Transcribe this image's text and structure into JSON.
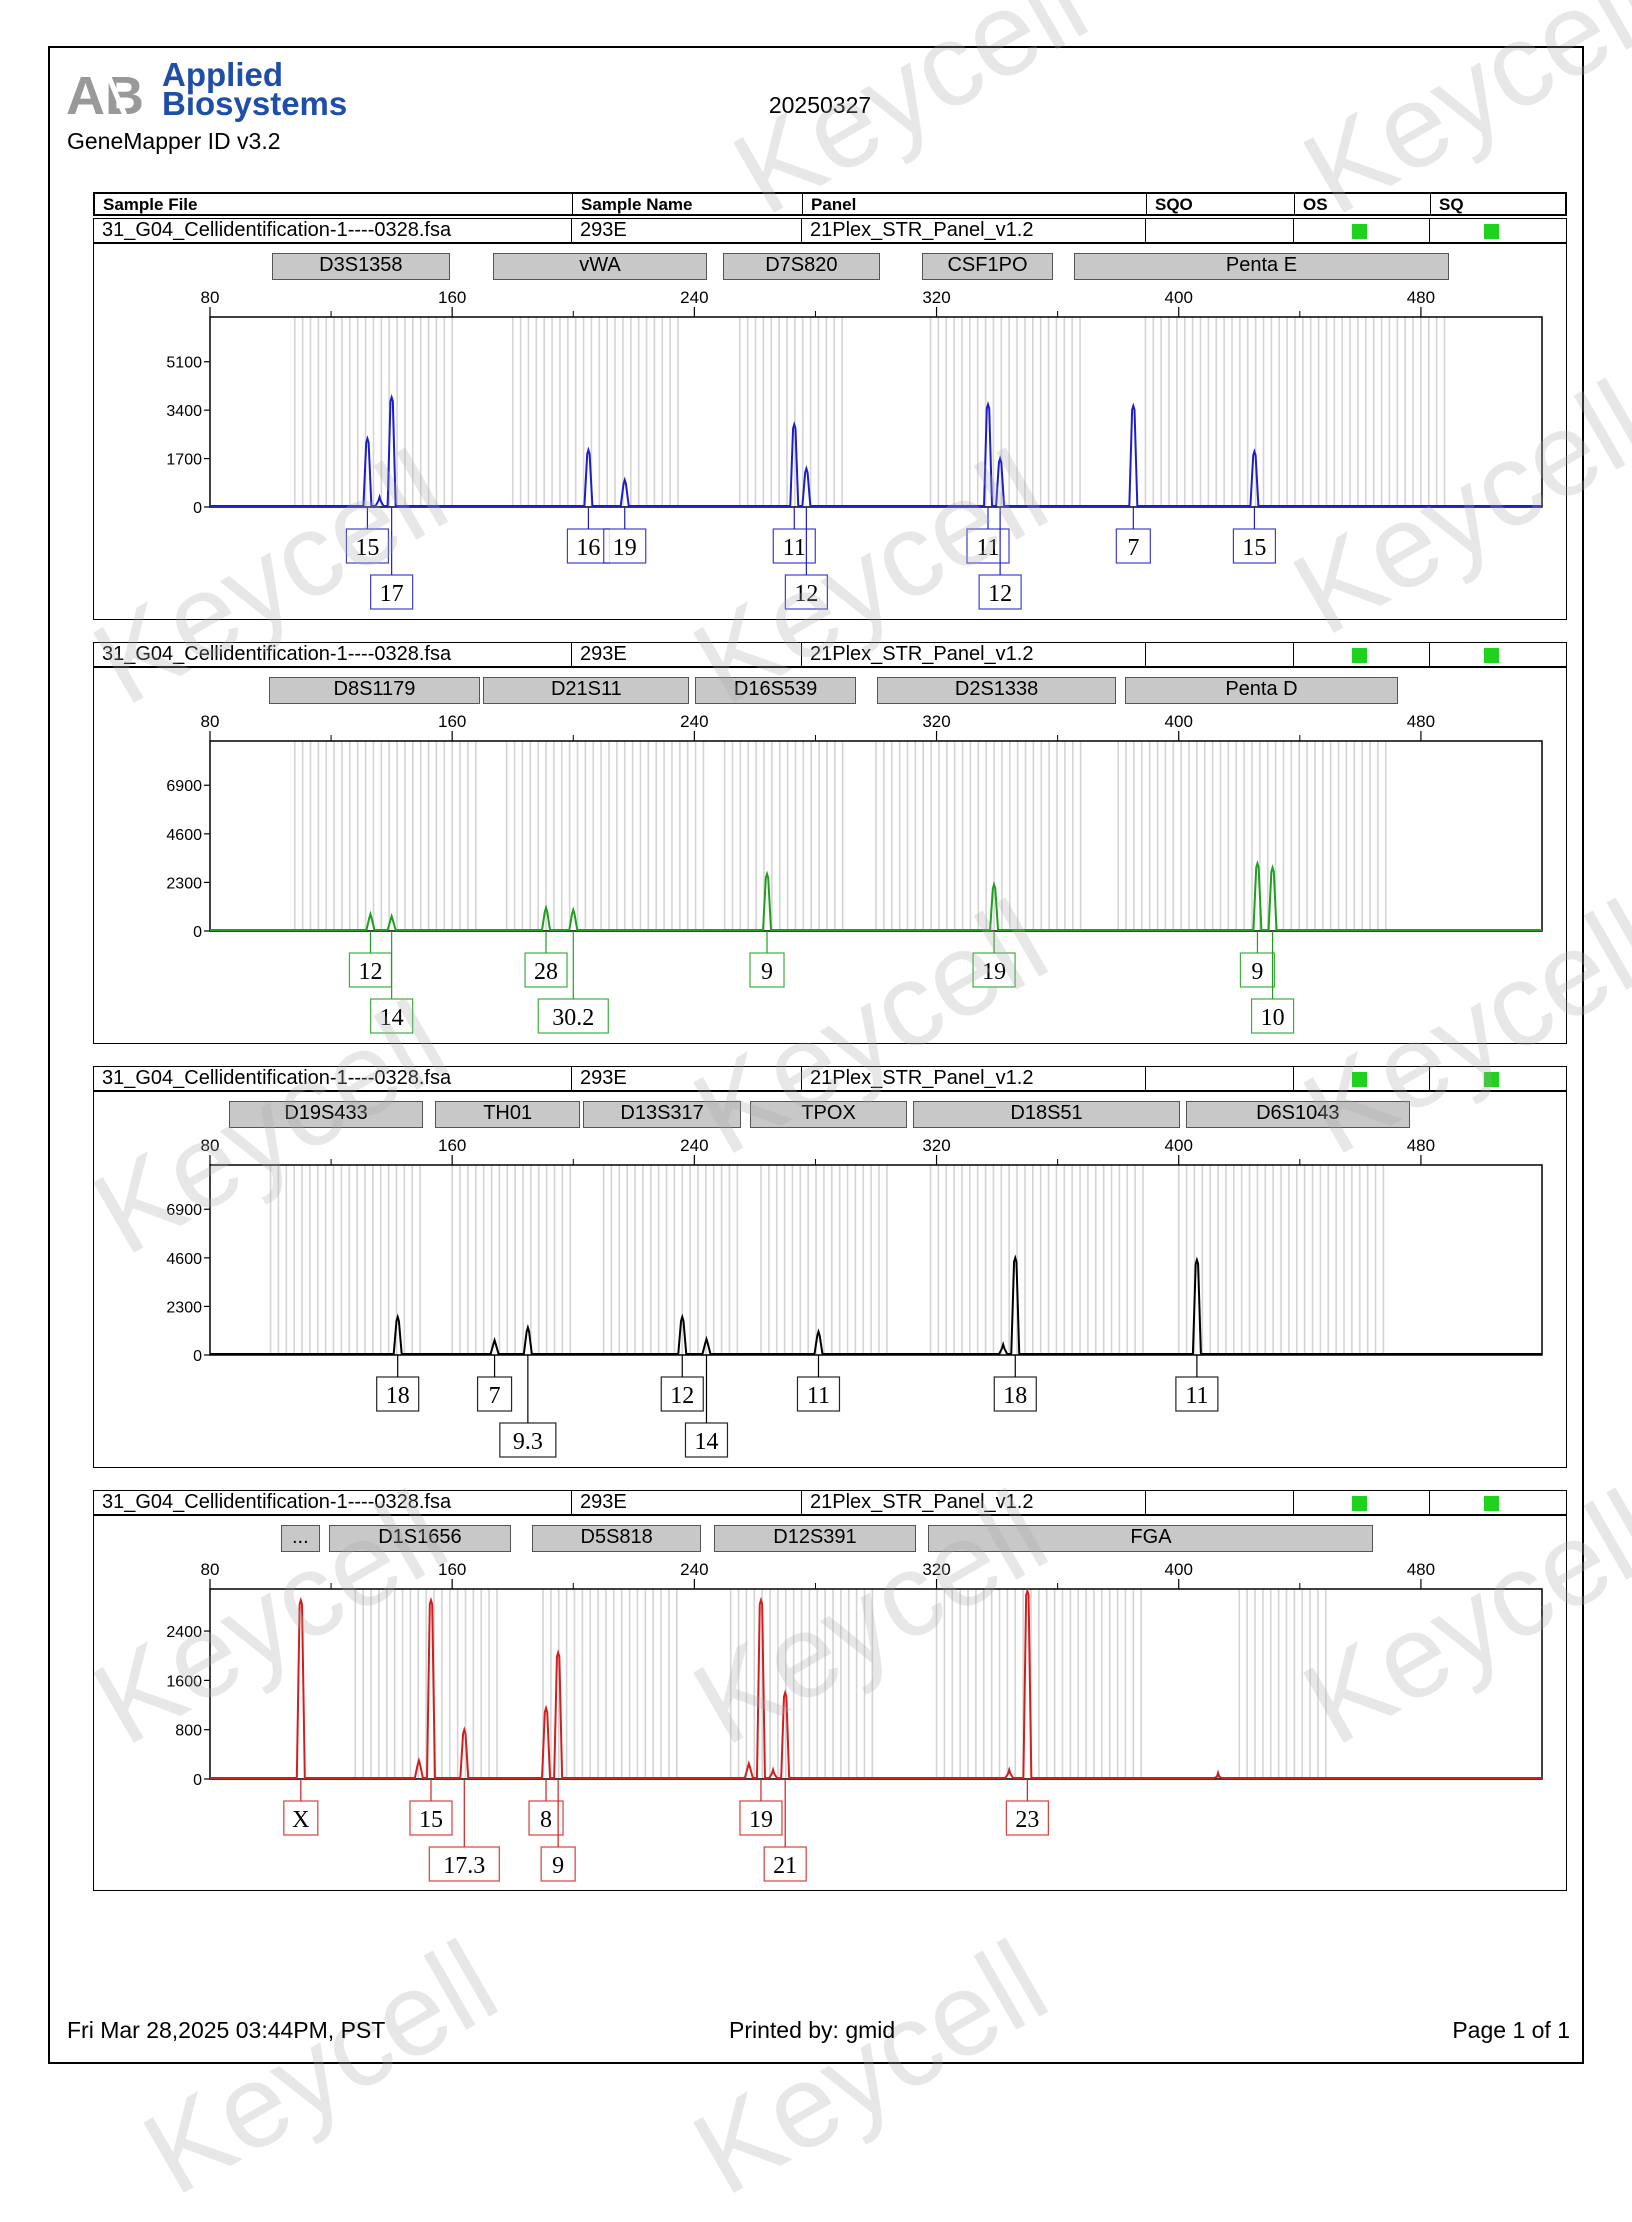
{
  "header": {
    "brand_line1": "Applied",
    "brand_line2": "Biosystems",
    "software": "GeneMapper ID v3.2",
    "report_date": "20250327"
  },
  "table_header": {
    "sample_file": "Sample File",
    "sample_name": "Sample Name",
    "panel": "Panel",
    "sqo": "SQO",
    "os": "OS",
    "sq": "SQ"
  },
  "watermark_text": "Keycell",
  "footer": {
    "datetime": "Fri Mar 28,2025 03:44PM, PST",
    "printed_by": "Printed by: gmid",
    "page": "Page 1 of 1"
  },
  "colors": {
    "sq_pass": "#1ed21e",
    "brand": "#1f4ea8"
  },
  "chart_data": [
    {
      "type": "line",
      "sample_file": "31_G04_Cellidentification-1----0328.fsa",
      "sample_name": "293E",
      "panel": "21Plex_STR_Panel_v1.2",
      "color": "#1e1ec8",
      "x_ticks": [
        80,
        160,
        240,
        320,
        400,
        480
      ],
      "xlim": [
        80,
        520
      ],
      "y_ticks": [
        0,
        1700,
        3400,
        5100
      ],
      "ylim": [
        0,
        6600
      ],
      "markers": [
        {
          "name": "D3S1358",
          "start": 101,
          "end": 160
        },
        {
          "name": "vWA",
          "start": 174,
          "end": 245
        },
        {
          "name": "D7S820",
          "start": 250,
          "end": 302
        },
        {
          "name": "CSF1PO",
          "start": 316,
          "end": 359
        },
        {
          "name": "Penta E",
          "start": 366,
          "end": 490
        }
      ],
      "bin_ranges": [
        [
          108,
          160
        ],
        [
          180,
          235
        ],
        [
          255,
          290
        ],
        [
          318,
          370
        ],
        [
          389,
          490
        ]
      ],
      "peaks": [
        {
          "x": 132,
          "y": 2400
        },
        {
          "x": 136,
          "y": 350
        },
        {
          "x": 140,
          "y": 3850
        },
        {
          "x": 205,
          "y": 2000
        },
        {
          "x": 217,
          "y": 950
        },
        {
          "x": 273,
          "y": 2900
        },
        {
          "x": 277,
          "y": 1350
        },
        {
          "x": 337,
          "y": 3600
        },
        {
          "x": 341,
          "y": 1700
        },
        {
          "x": 385,
          "y": 3550
        },
        {
          "x": 425,
          "y": 1950
        }
      ],
      "alleles": [
        {
          "label": "15",
          "x": 132,
          "row": 1
        },
        {
          "label": "17",
          "x": 140,
          "row": 2
        },
        {
          "label": "16",
          "x": 205,
          "row": 1
        },
        {
          "label": "19",
          "x": 217,
          "row": 1
        },
        {
          "label": "11",
          "x": 273,
          "row": 1
        },
        {
          "label": "12",
          "x": 277,
          "row": 2
        },
        {
          "label": "11",
          "x": 337,
          "row": 1
        },
        {
          "label": "12",
          "x": 341,
          "row": 2
        },
        {
          "label": "7",
          "x": 385,
          "row": 1
        },
        {
          "label": "15",
          "x": 425,
          "row": 1
        }
      ]
    },
    {
      "type": "line",
      "sample_file": "31_G04_Cellidentification-1----0328.fsa",
      "sample_name": "293E",
      "panel": "21Plex_STR_Panel_v1.2",
      "color": "#1ea01e",
      "x_ticks": [
        80,
        160,
        240,
        320,
        400,
        480
      ],
      "xlim": [
        80,
        520
      ],
      "y_ticks": [
        0,
        2300,
        4600,
        6900
      ],
      "ylim": [
        0,
        8900
      ],
      "markers": [
        {
          "name": "D8S1179",
          "start": 100,
          "end": 170
        },
        {
          "name": "D21S11",
          "start": 171,
          "end": 239
        },
        {
          "name": "D16S539",
          "start": 241,
          "end": 294
        },
        {
          "name": "D2S1338",
          "start": 301,
          "end": 380
        },
        {
          "name": "Penta D",
          "start": 383,
          "end": 473
        }
      ],
      "bin_ranges": [
        [
          108,
          170
        ],
        [
          178,
          245
        ],
        [
          250,
          290
        ],
        [
          300,
          370
        ],
        [
          380,
          470
        ]
      ],
      "peaks": [
        {
          "x": 133,
          "y": 800
        },
        {
          "x": 140,
          "y": 700
        },
        {
          "x": 191,
          "y": 1100
        },
        {
          "x": 200,
          "y": 1000
        },
        {
          "x": 264,
          "y": 2700
        },
        {
          "x": 339,
          "y": 2200
        },
        {
          "x": 426,
          "y": 3200
        },
        {
          "x": 431,
          "y": 3000
        }
      ],
      "alleles": [
        {
          "label": "12",
          "x": 133,
          "row": 1
        },
        {
          "label": "14",
          "x": 140,
          "row": 2
        },
        {
          "label": "28",
          "x": 191,
          "row": 1
        },
        {
          "label": "30.2",
          "x": 200,
          "row": 2
        },
        {
          "label": "9",
          "x": 264,
          "row": 1
        },
        {
          "label": "19",
          "x": 339,
          "row": 1
        },
        {
          "label": "9",
          "x": 426,
          "row": 1
        },
        {
          "label": "10",
          "x": 431,
          "row": 2
        }
      ]
    },
    {
      "type": "line",
      "sample_file": "31_G04_Cellidentification-1----0328.fsa",
      "sample_name": "293E",
      "panel": "21Plex_STR_Panel_v1.2",
      "color": "#000000",
      "x_ticks": [
        80,
        160,
        240,
        320,
        400,
        480
      ],
      "xlim": [
        80,
        520
      ],
      "y_ticks": [
        0,
        2300,
        4600,
        6900
      ],
      "ylim": [
        0,
        8900
      ],
      "markers": [
        {
          "name": "D19S433",
          "start": 87,
          "end": 151
        },
        {
          "name": "TH01",
          "start": 155,
          "end": 203
        },
        {
          "name": "D13S317",
          "start": 204,
          "end": 256
        },
        {
          "name": "TPOX",
          "start": 259,
          "end": 311
        },
        {
          "name": "D18S51",
          "start": 313,
          "end": 401
        },
        {
          "name": "D6S1043",
          "start": 403,
          "end": 477
        }
      ],
      "bin_ranges": [
        [
          100,
          150
        ],
        [
          160,
          200
        ],
        [
          210,
          255
        ],
        [
          262,
          305
        ],
        [
          318,
          390
        ],
        [
          400,
          470
        ]
      ],
      "peaks": [
        {
          "x": 142,
          "y": 1800
        },
        {
          "x": 174,
          "y": 700
        },
        {
          "x": 185,
          "y": 1300
        },
        {
          "x": 236,
          "y": 1800
        },
        {
          "x": 244,
          "y": 750
        },
        {
          "x": 281,
          "y": 1100
        },
        {
          "x": 346,
          "y": 4600
        },
        {
          "x": 342,
          "y": 500
        },
        {
          "x": 406,
          "y": 4500
        }
      ],
      "alleles": [
        {
          "label": "18",
          "x": 142,
          "row": 1
        },
        {
          "label": "7",
          "x": 174,
          "row": 1
        },
        {
          "label": "9.3",
          "x": 185,
          "row": 2
        },
        {
          "label": "12",
          "x": 236,
          "row": 1
        },
        {
          "label": "14",
          "x": 244,
          "row": 2
        },
        {
          "label": "11",
          "x": 281,
          "row": 1
        },
        {
          "label": "18",
          "x": 346,
          "row": 1
        },
        {
          "label": "11",
          "x": 406,
          "row": 1
        }
      ]
    },
    {
      "type": "line",
      "sample_file": "31_G04_Cellidentification-1----0328.fsa",
      "sample_name": "293E",
      "panel": "21Plex_STR_Panel_v1.2",
      "color": "#d21e1e",
      "x_ticks": [
        80,
        160,
        240,
        320,
        400,
        480
      ],
      "xlim": [
        80,
        520
      ],
      "y_ticks": [
        0,
        800,
        1600,
        2400
      ],
      "ylim": [
        0,
        3050
      ],
      "markers": [
        {
          "name": "...",
          "start": 104,
          "end": 117
        },
        {
          "name": "D1S1656",
          "start": 120,
          "end": 180
        },
        {
          "name": "D5S818",
          "start": 187,
          "end": 243
        },
        {
          "name": "D12S391",
          "start": 247,
          "end": 314
        },
        {
          "name": "FGA",
          "start": 318,
          "end": 465
        }
      ],
      "bin_ranges": [
        [
          128,
          175
        ],
        [
          190,
          235
        ],
        [
          252,
          300
        ],
        [
          320,
          390
        ],
        [
          420,
          450
        ]
      ],
      "peaks": [
        {
          "x": 110,
          "y": 2900
        },
        {
          "x": 149,
          "y": 300
        },
        {
          "x": 153,
          "y": 2900
        },
        {
          "x": 164,
          "y": 800
        },
        {
          "x": 191,
          "y": 1150
        },
        {
          "x": 195,
          "y": 2050
        },
        {
          "x": 258,
          "y": 250
        },
        {
          "x": 262,
          "y": 2900
        },
        {
          "x": 266,
          "y": 150
        },
        {
          "x": 270,
          "y": 1400
        },
        {
          "x": 344,
          "y": 150
        },
        {
          "x": 350,
          "y": 3050
        },
        {
          "x": 413,
          "y": 100
        }
      ],
      "alleles": [
        {
          "label": "X",
          "x": 110,
          "row": 1
        },
        {
          "label": "15",
          "x": 153,
          "row": 1
        },
        {
          "label": "17.3",
          "x": 164,
          "row": 2
        },
        {
          "label": "8",
          "x": 191,
          "row": 1
        },
        {
          "label": "9",
          "x": 195,
          "row": 2
        },
        {
          "label": "19",
          "x": 262,
          "row": 1
        },
        {
          "label": "21",
          "x": 270,
          "row": 2
        },
        {
          "label": "23",
          "x": 350,
          "row": 1
        }
      ]
    }
  ]
}
